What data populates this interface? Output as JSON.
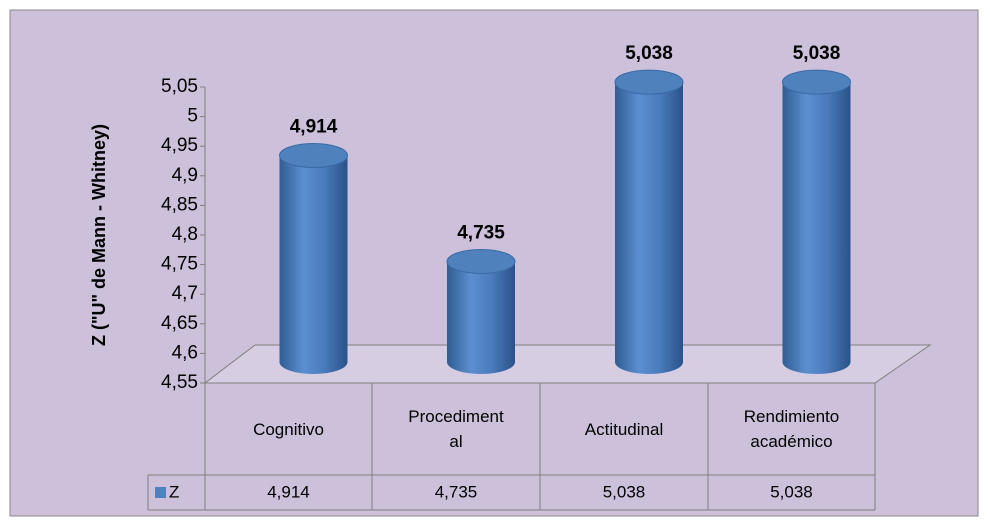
{
  "chart_data": {
    "type": "bar",
    "y_axis_label": "Z (\"U\" de Mann - Whitney)",
    "categories": [
      "Cognitivo",
      "Procedimental",
      "Actitudinal",
      "Rendimiento académico"
    ],
    "series": [
      {
        "name": "Z",
        "color": "#4f81bd",
        "values": [
          4.914,
          4.735,
          5.038,
          5.038
        ],
        "value_labels": [
          "4,914",
          "4,735",
          "5,038",
          "5,038"
        ]
      }
    ],
    "ylim": [
      4.55,
      5.05
    ],
    "yticks": [
      {
        "value": 4.55,
        "label": "4,55"
      },
      {
        "value": 4.6,
        "label": "4,6"
      },
      {
        "value": 4.65,
        "label": "4,65"
      },
      {
        "value": 4.7,
        "label": "4,7"
      },
      {
        "value": 4.75,
        "label": "4,75"
      },
      {
        "value": 4.8,
        "label": "4,8"
      },
      {
        "value": 4.85,
        "label": "4,85"
      },
      {
        "value": 4.9,
        "label": "4,9"
      },
      {
        "value": 4.95,
        "label": "4,95"
      },
      5,
      {
        "value": 5.05,
        "label": "5,05"
      }
    ]
  }
}
